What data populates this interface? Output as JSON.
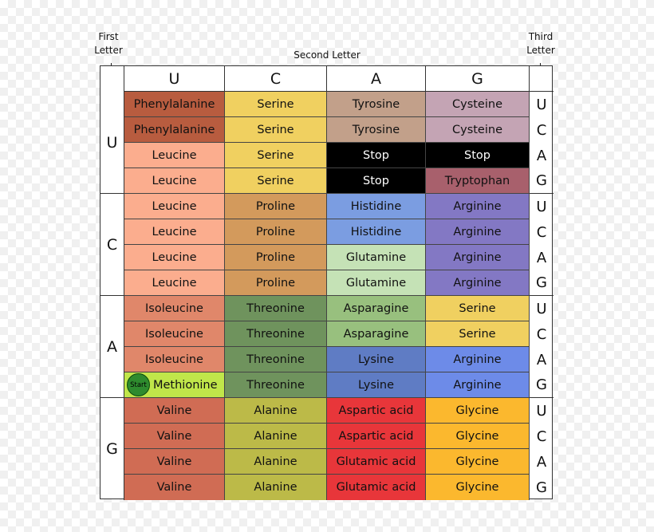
{
  "labels": {
    "first_letter": "First\nLetter",
    "second_letter": "Second Letter",
    "third_letter": "Third\nLetter"
  },
  "second_letter_headers": [
    "U",
    "C",
    "A",
    "G"
  ],
  "first_letters": [
    "U",
    "C",
    "A",
    "G"
  ],
  "third_letters": [
    "U",
    "C",
    "A",
    "G"
  ],
  "start_badge": "Start",
  "colors": {
    "Phenylalanine": "#b85c3f",
    "Serine": "#f0d060",
    "Tyrosine": "#c2a08a",
    "Cysteine": "#c4a4b4",
    "Leucine": "#fbad8e",
    "Stop": "#000000",
    "Tryptophan": "#a8606c",
    "Proline": "#d39a5c",
    "Histidine": "#7b9de1",
    "Arginine": "#8378c4",
    "Glutamine": "#c5e2b6",
    "Isoleucine": "#e0876a",
    "Threonine": "#6f935d",
    "Asparagine": "#98c07e",
    "Lysine": "#5f7cc4",
    "Methionine": "#c0e64a",
    "Serine-AG": "#f0d060",
    "Arginine-AG": "#6d8be8",
    "Valine": "#d06c54",
    "Alanine": "#bcba48",
    "Aspartic acid": "#e8363a",
    "Glutamic acid": "#e8363a",
    "Glycine": "#fbb82e"
  },
  "grid": [
    [
      [
        "Phenylalanine",
        "Serine",
        "Tyrosine",
        "Cysteine"
      ],
      [
        "Phenylalanine",
        "Serine",
        "Tyrosine",
        "Cysteine"
      ],
      [
        "Leucine",
        "Serine",
        "Stop",
        "Stop"
      ],
      [
        "Leucine",
        "Serine",
        "Stop",
        "Tryptophan"
      ]
    ],
    [
      [
        "Leucine",
        "Proline",
        "Histidine",
        "Arginine"
      ],
      [
        "Leucine",
        "Proline",
        "Histidine",
        "Arginine"
      ],
      [
        "Leucine",
        "Proline",
        "Glutamine",
        "Arginine"
      ],
      [
        "Leucine",
        "Proline",
        "Glutamine",
        "Arginine"
      ]
    ],
    [
      [
        "Isoleucine",
        "Threonine",
        "Asparagine",
        "Serine"
      ],
      [
        "Isoleucine",
        "Threonine",
        "Asparagine",
        "Serine"
      ],
      [
        "Isoleucine",
        "Threonine",
        "Lysine",
        "Arginine"
      ],
      [
        "Methionine",
        "Threonine",
        "Lysine",
        "Arginine"
      ]
    ],
    [
      [
        "Valine",
        "Alanine",
        "Aspartic acid",
        "Glycine"
      ],
      [
        "Valine",
        "Alanine",
        "Aspartic acid",
        "Glycine"
      ],
      [
        "Valine",
        "Alanine",
        "Glutamic acid",
        "Glycine"
      ],
      [
        "Valine",
        "Alanine",
        "Glutamic acid",
        "Glycine"
      ]
    ]
  ]
}
